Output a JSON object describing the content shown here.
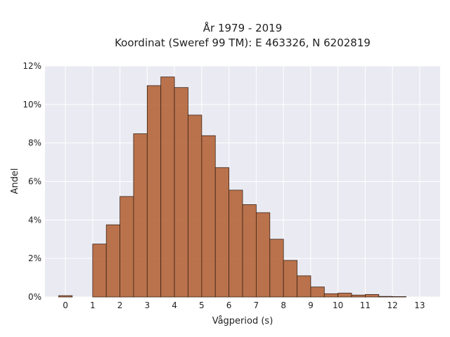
{
  "chart_data": {
    "type": "bar",
    "title": "År 1979 - 2019",
    "subtitle": "Koordinat (Sweref 99 TM): E 463326, N 6202819",
    "xlabel": "Vågperiod (s)",
    "ylabel": "Andel",
    "xlim": [
      -0.75,
      13.75
    ],
    "ylim": [
      0,
      12
    ],
    "x_ticks": [
      0,
      1,
      2,
      3,
      4,
      5,
      6,
      7,
      8,
      9,
      10,
      11,
      12,
      13
    ],
    "x_tick_labels": [
      "0",
      "1",
      "2",
      "3",
      "4",
      "5",
      "6",
      "7",
      "8",
      "9",
      "10",
      "11",
      "12",
      "13"
    ],
    "y_ticks": [
      0,
      2,
      4,
      6,
      8,
      10,
      12
    ],
    "y_tick_labels": [
      "0%",
      "2%",
      "4%",
      "6%",
      "8%",
      "10%",
      "12%"
    ],
    "bin_width": 0.5,
    "bin_starts": [
      -0.25,
      0.25,
      1.0,
      1.5,
      2.0,
      2.5,
      3.0,
      3.5,
      4.0,
      4.5,
      5.0,
      5.5,
      6.0,
      6.5,
      7.0,
      7.5,
      8.0,
      8.5,
      9.0,
      9.5,
      10.0,
      10.5,
      11.0,
      11.5,
      12.0
    ],
    "values": [
      0.07,
      0.0,
      2.75,
      3.75,
      5.22,
      8.48,
      10.98,
      11.43,
      10.88,
      9.45,
      8.38,
      6.72,
      5.55,
      4.8,
      4.38,
      3.0,
      1.9,
      1.1,
      0.52,
      0.17,
      0.2,
      0.1,
      0.13,
      0.03,
      0.02
    ],
    "grid": true,
    "bar_color": "#b5653a",
    "edge_color": "#3a2416",
    "background_color": "#eaeaf2",
    "grid_color": "#ffffff"
  }
}
